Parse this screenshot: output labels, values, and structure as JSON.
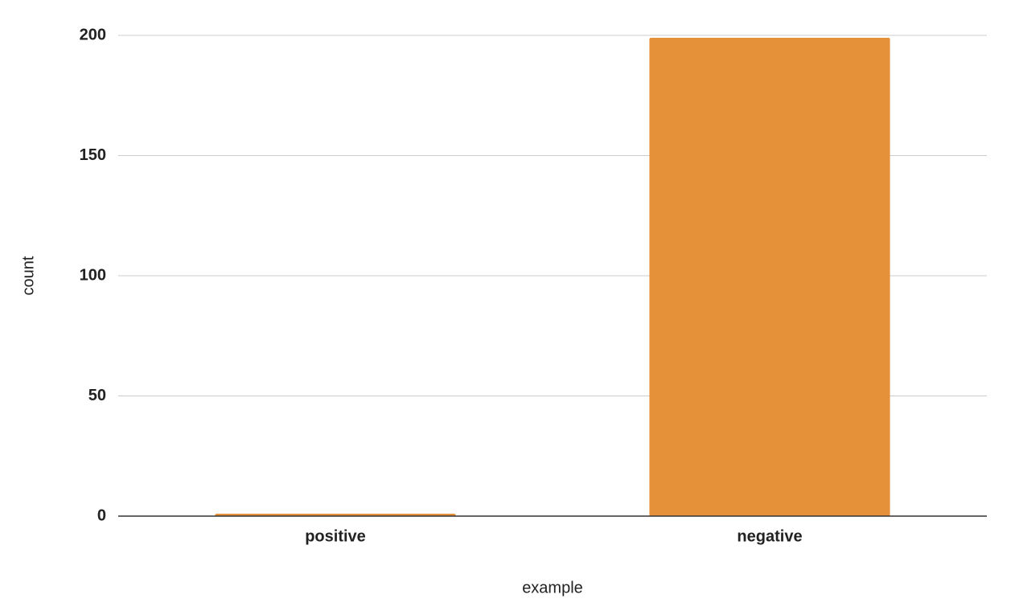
{
  "chart_data": {
    "type": "bar",
    "x_label": "example",
    "y_label": "count",
    "categories": [
      "positive",
      "negative"
    ],
    "values": [
      1,
      199
    ],
    "color": "#e59139",
    "ylim": [
      0,
      200
    ],
    "yticks": [
      0,
      50,
      100,
      150,
      200
    ],
    "grid": true
  }
}
